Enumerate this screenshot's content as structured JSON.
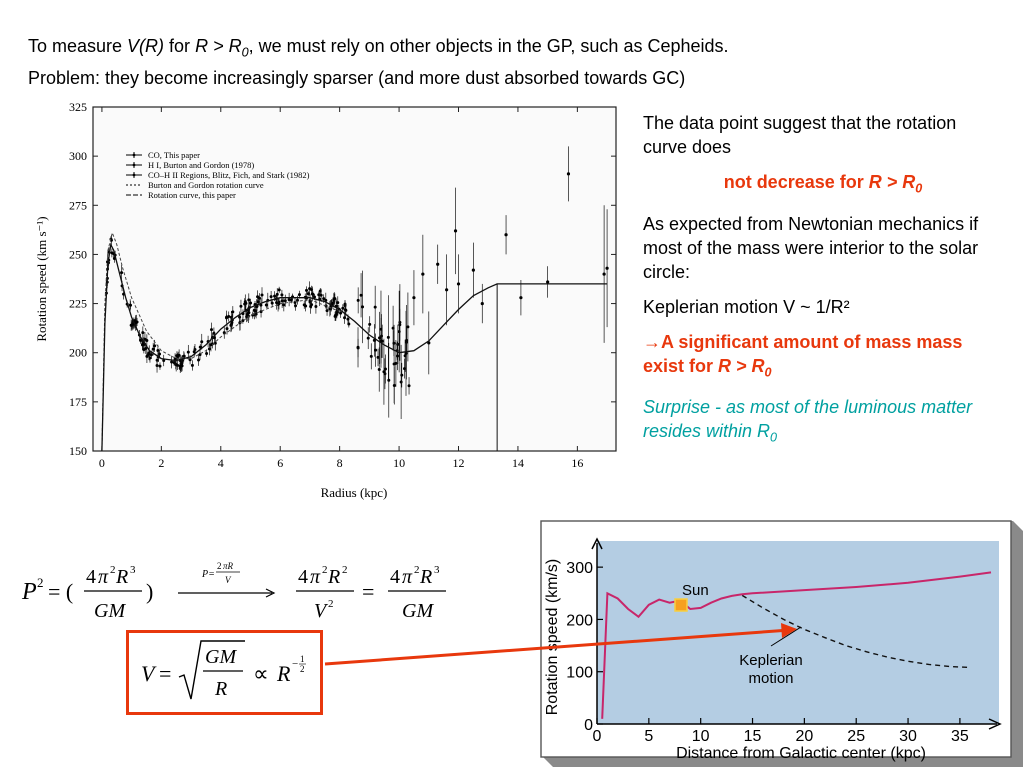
{
  "header": {
    "line1_a": "To measure ",
    "line1_vr": "V(R)",
    "line1_b": " for ",
    "line1_r": "R > R",
    "line1_sub": "0",
    "line1_c": ", we must rely on other objects in the GP, such as Cepheids.",
    "line2": "Problem: they become increasingly sparser (and more dust absorbed towards GC)"
  },
  "right": {
    "p1": "The data point suggest that the rotation curve does",
    "p2_a": "not decrease for ",
    "p2_r": "R > R",
    "p2_sub": "0",
    "p3": "As expected from Newtonian mechanics if most of the mass were interior to the solar circle:",
    "p4": "Keplerian motion V ~ 1/R²",
    "p5_arrow": "→",
    "p5_a": "A significant amount of mass mass exist for ",
    "p5_r": "R > R",
    "p5_sub": "0",
    "p6_a": "Surprise - as most of the luminous matter resides within R",
    "p6_sub": "0"
  },
  "figure1": {
    "xlabel": "Radius (kpc)",
    "ylabel": "Rotation speed (km s⁻¹)",
    "xticks": [
      "0",
      "2",
      "4",
      "6",
      "8",
      "10",
      "12",
      "14",
      "16"
    ],
    "yticks": [
      "150",
      "175",
      "200",
      "225",
      "250",
      "275",
      "300",
      "325"
    ],
    "legend": [
      "CO, This paper",
      "H I, Burton and Gordon (1978)",
      "CO–H II Regions, Blitz, Fich, and Stark (1982)",
      "Burton and Gordon rotation curve",
      "Rotation curve, this paper"
    ]
  },
  "figure2": {
    "ylabel": "Rotation speed (km/s)",
    "xlabel": "Distance from Galactic center (kpc)",
    "yticks": [
      "0",
      "100",
      "200",
      "300"
    ],
    "xticks": [
      "0",
      "5",
      "10",
      "15",
      "20",
      "25",
      "30",
      "35"
    ],
    "sun_label": "Sun",
    "kepler_line1": "Keplerian",
    "kepler_line2": "motion",
    "bg_color": "#b4cde3",
    "curve_color": "#c8266a"
  },
  "chart_data": [
    {
      "type": "scatter",
      "title": "",
      "xlabel": "Radius (kpc)",
      "ylabel": "Rotation speed (km s⁻¹)",
      "xlim": [
        -0.3,
        17.3
      ],
      "ylim": [
        150,
        325
      ],
      "series": [
        {
          "name": "Rotation curve, this paper",
          "x": [
            0,
            0.1,
            0.2,
            0.3,
            0.4,
            0.6,
            0.8,
            1.0,
            1.3,
            1.6,
            2.0,
            2.5,
            3.0,
            3.5,
            4.0,
            4.5,
            5.0,
            5.5,
            6.0,
            6.5,
            7.0,
            7.5,
            8.0,
            8.5,
            9.0,
            9.5,
            10.0,
            10.5,
            11.0,
            11.5,
            12.0,
            12.5,
            13.0,
            13.3,
            14,
            15,
            16,
            17
          ],
          "y": [
            150,
            215,
            245,
            255,
            252,
            240,
            228,
            218,
            208,
            201,
            197,
            196,
            198,
            204,
            212,
            218,
            223,
            226,
            228,
            228,
            228,
            226,
            222,
            216,
            209,
            204,
            200,
            201,
            206,
            214,
            222,
            229,
            233,
            235,
            235,
            235,
            235,
            235
          ]
        },
        {
          "name": "Burton and Gordon rotation curve",
          "x": [
            0,
            0.1,
            0.2,
            0.35,
            0.5,
            0.7,
            1.0,
            1.5,
            2.0,
            2.5,
            3.0,
            3.5,
            4.0,
            5.0,
            6.0,
            7.0,
            8.0
          ],
          "y": [
            150,
            225,
            252,
            261,
            255,
            243,
            228,
            211,
            201,
            197,
            197,
            201,
            208,
            219,
            225,
            227,
            221
          ]
        }
      ]
    },
    {
      "type": "line",
      "title": "",
      "xlabel": "Distance from Galactic center (kpc)",
      "ylabel": "Rotation speed (km/s)",
      "xlim": [
        0,
        38
      ],
      "ylim": [
        0,
        350
      ],
      "series": [
        {
          "name": "",
          "x": [
            0.5,
            1,
            2,
            3,
            4,
            5,
            6,
            7,
            8,
            9,
            10,
            11,
            12,
            13,
            14,
            15,
            20,
            25,
            30,
            35,
            38
          ],
          "y": [
            10,
            250,
            240,
            220,
            205,
            228,
            238,
            232,
            236,
            220,
            222,
            232,
            240,
            245,
            248,
            250,
            256,
            262,
            270,
            282,
            290
          ]
        },
        {
          "name": "Keplerian motion",
          "x": [
            14,
            16,
            18,
            20,
            22,
            24,
            26,
            28,
            30,
            32,
            34,
            36
          ],
          "y": [
            246,
            222,
            200,
            181,
            165,
            150,
            138,
            128,
            120,
            114,
            110,
            108
          ]
        }
      ]
    }
  ]
}
